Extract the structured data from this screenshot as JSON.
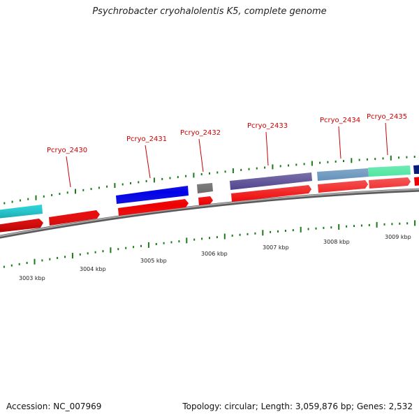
{
  "title": "Psychrobacter cryohalolentis K5, complete genome",
  "footer": {
    "accession": "Accession: NC_007969",
    "stats": "Topology: circular; Length: 3,059,876 bp; Genes: 2,532"
  },
  "colors": {
    "backbone": "#8c8c8c",
    "backbone_edge": "#555555",
    "cds_red": "#ee0000",
    "tick_green": "#1a7a1a",
    "label_red": "#cc0000"
  },
  "gene_labels": [
    {
      "name": "Pcryo_2430"
    },
    {
      "name": "Pcryo_2431"
    },
    {
      "name": "Pcryo_2432"
    },
    {
      "name": "Pcryo_2433"
    },
    {
      "name": "Pcryo_2434"
    },
    {
      "name": "Pcryo_2435"
    }
  ],
  "scale_labels": [
    {
      "text": "3003 kbp"
    },
    {
      "text": "3004 kbp"
    },
    {
      "text": "3005 kbp"
    },
    {
      "text": "3006 kbp"
    },
    {
      "text": "3007 kbp"
    },
    {
      "text": "3008 kbp"
    },
    {
      "text": "3009 kbp"
    }
  ],
  "feature_colors": [
    {
      "color": "#22e0e8"
    },
    {
      "color": "#0000e6"
    },
    {
      "color": "#6e6e6e"
    },
    {
      "color": "#4c3f8c"
    },
    {
      "color": "#4a7fb0"
    },
    {
      "color": "#22e08a"
    },
    {
      "color": "#0a1a7a"
    }
  ]
}
